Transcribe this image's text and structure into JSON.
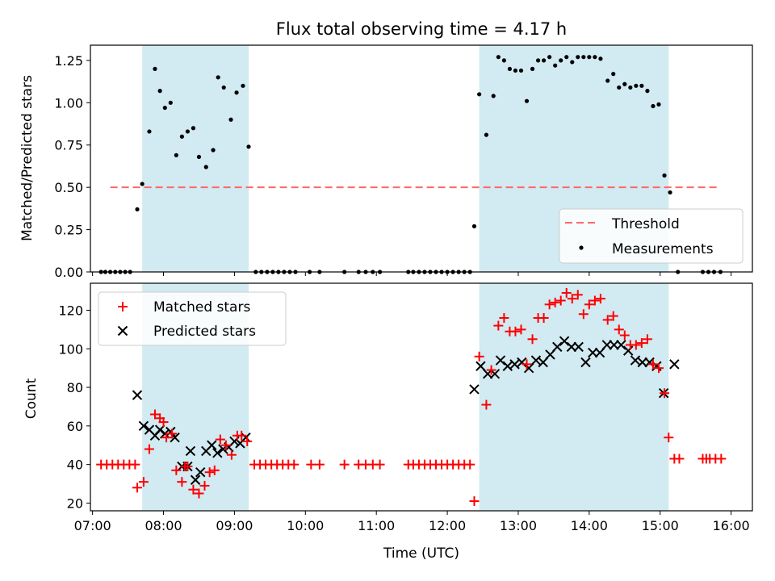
{
  "title": "Flux total observing time = 4.17 h",
  "colors": {
    "shade": "#add8e6",
    "threshold": "#ff6666",
    "measurement": "#000000",
    "matched": "#ff0000",
    "predicted": "#000000"
  },
  "chart_data": [
    {
      "type": "scatter",
      "ylabel": "Matched/Predicted stars",
      "xlim": [
        6.97,
        16.3
      ],
      "ylim": [
        0,
        1.34
      ],
      "yticks": [
        0.0,
        0.25,
        0.5,
        0.75,
        1.0,
        1.25
      ],
      "ytick_labels": [
        "0.00",
        "0.25",
        "0.50",
        "0.75",
        "1.00",
        "1.25"
      ],
      "shaded_spans": [
        [
          7.7,
          9.2
        ],
        [
          12.45,
          15.12
        ]
      ],
      "threshold": {
        "label": "Threshold",
        "y": 0.5,
        "x": [
          7.25,
          15.85
        ]
      },
      "legend_position": "lower right",
      "series": [
        {
          "name": "Measurements",
          "points": [
            [
              7.12,
              0
            ],
            [
              7.18,
              0
            ],
            [
              7.25,
              0
            ],
            [
              7.32,
              0
            ],
            [
              7.39,
              0
            ],
            [
              7.46,
              0
            ],
            [
              7.53,
              0
            ],
            [
              7.63,
              0.37
            ],
            [
              7.7,
              0.52
            ],
            [
              7.8,
              0.83
            ],
            [
              7.88,
              1.2
            ],
            [
              7.95,
              1.07
            ],
            [
              8.02,
              0.97
            ],
            [
              8.1,
              1.0
            ],
            [
              8.18,
              0.69
            ],
            [
              8.26,
              0.8
            ],
            [
              8.34,
              0.83
            ],
            [
              8.42,
              0.85
            ],
            [
              8.5,
              0.68
            ],
            [
              8.6,
              0.62
            ],
            [
              8.7,
              0.72
            ],
            [
              8.77,
              1.15
            ],
            [
              8.85,
              1.09
            ],
            [
              8.95,
              0.9
            ],
            [
              9.03,
              1.06
            ],
            [
              9.12,
              1.1
            ],
            [
              9.2,
              0.74
            ],
            [
              9.3,
              0
            ],
            [
              9.38,
              0
            ],
            [
              9.46,
              0
            ],
            [
              9.54,
              0
            ],
            [
              9.62,
              0
            ],
            [
              9.7,
              0
            ],
            [
              9.78,
              0
            ],
            [
              9.86,
              0
            ],
            [
              10.06,
              0
            ],
            [
              10.2,
              0
            ],
            [
              10.55,
              0
            ],
            [
              10.75,
              0
            ],
            [
              10.85,
              0
            ],
            [
              10.95,
              0
            ],
            [
              11.05,
              0
            ],
            [
              11.45,
              0
            ],
            [
              11.52,
              0
            ],
            [
              11.6,
              0
            ],
            [
              11.68,
              0
            ],
            [
              11.76,
              0
            ],
            [
              11.84,
              0
            ],
            [
              11.92,
              0
            ],
            [
              12.0,
              0
            ],
            [
              12.08,
              0
            ],
            [
              12.16,
              0
            ],
            [
              12.24,
              0
            ],
            [
              12.32,
              0
            ],
            [
              12.38,
              0.27
            ],
            [
              12.45,
              1.05
            ],
            [
              12.55,
              0.81
            ],
            [
              12.65,
              1.04
            ],
            [
              12.72,
              1.27
            ],
            [
              12.8,
              1.25
            ],
            [
              12.88,
              1.2
            ],
            [
              12.96,
              1.19
            ],
            [
              13.04,
              1.19
            ],
            [
              13.12,
              1.01
            ],
            [
              13.2,
              1.2
            ],
            [
              13.28,
              1.25
            ],
            [
              13.36,
              1.25
            ],
            [
              13.44,
              1.27
            ],
            [
              13.52,
              1.22
            ],
            [
              13.6,
              1.25
            ],
            [
              13.68,
              1.27
            ],
            [
              13.76,
              1.24
            ],
            [
              13.84,
              1.27
            ],
            [
              13.92,
              1.27
            ],
            [
              14.0,
              1.27
            ],
            [
              14.08,
              1.27
            ],
            [
              14.16,
              1.26
            ],
            [
              14.26,
              1.13
            ],
            [
              14.34,
              1.17
            ],
            [
              14.42,
              1.09
            ],
            [
              14.5,
              1.11
            ],
            [
              14.58,
              1.09
            ],
            [
              14.66,
              1.1
            ],
            [
              14.74,
              1.1
            ],
            [
              14.82,
              1.07
            ],
            [
              14.9,
              0.98
            ],
            [
              14.98,
              0.99
            ],
            [
              15.06,
              0.57
            ],
            [
              15.14,
              0.47
            ],
            [
              15.25,
              0
            ],
            [
              15.6,
              0
            ],
            [
              15.68,
              0
            ],
            [
              15.76,
              0
            ],
            [
              15.85,
              0
            ]
          ]
        }
      ]
    },
    {
      "type": "scatter",
      "xlabel": "Time (UTC)",
      "ylabel": "Count",
      "xlim": [
        6.97,
        16.3
      ],
      "ylim": [
        16,
        134
      ],
      "yticks": [
        20,
        40,
        60,
        80,
        100,
        120
      ],
      "xticks": [
        7,
        8,
        9,
        10,
        11,
        12,
        13,
        14,
        15,
        16
      ],
      "xtick_labels": [
        "07:00",
        "08:00",
        "09:00",
        "10:00",
        "11:00",
        "12:00",
        "13:00",
        "14:00",
        "15:00",
        "16:00"
      ],
      "shaded_spans": [
        [
          7.7,
          9.2
        ],
        [
          12.45,
          15.12
        ]
      ],
      "legend_position": "upper left",
      "series": [
        {
          "name": "Matched stars",
          "marker": "plus",
          "points": [
            [
              7.12,
              40
            ],
            [
              7.2,
              40
            ],
            [
              7.28,
              40
            ],
            [
              7.36,
              40
            ],
            [
              7.44,
              40
            ],
            [
              7.52,
              40
            ],
            [
              7.6,
              40
            ],
            [
              7.63,
              28
            ],
            [
              7.72,
              31
            ],
            [
              7.8,
              48
            ],
            [
              7.88,
              66
            ],
            [
              7.95,
              64
            ],
            [
              8.0,
              62
            ],
            [
              8.04,
              54
            ],
            [
              8.12,
              56
            ],
            [
              8.18,
              37
            ],
            [
              8.26,
              31
            ],
            [
              8.3,
              39
            ],
            [
              8.34,
              39
            ],
            [
              8.42,
              27
            ],
            [
              8.5,
              25
            ],
            [
              8.58,
              29
            ],
            [
              8.65,
              36
            ],
            [
              8.72,
              37
            ],
            [
              8.8,
              53
            ],
            [
              8.88,
              50
            ],
            [
              8.96,
              45
            ],
            [
              9.04,
              55
            ],
            [
              9.1,
              55
            ],
            [
              9.18,
              52
            ],
            [
              9.28,
              40
            ],
            [
              9.36,
              40
            ],
            [
              9.44,
              40
            ],
            [
              9.52,
              40
            ],
            [
              9.6,
              40
            ],
            [
              9.68,
              40
            ],
            [
              9.76,
              40
            ],
            [
              9.84,
              40
            ],
            [
              10.08,
              40
            ],
            [
              10.2,
              40
            ],
            [
              10.55,
              40
            ],
            [
              10.75,
              40
            ],
            [
              10.85,
              40
            ],
            [
              10.95,
              40
            ],
            [
              11.05,
              40
            ],
            [
              11.45,
              40
            ],
            [
              11.52,
              40
            ],
            [
              11.6,
              40
            ],
            [
              11.68,
              40
            ],
            [
              11.76,
              40
            ],
            [
              11.84,
              40
            ],
            [
              11.92,
              40
            ],
            [
              12.0,
              40
            ],
            [
              12.08,
              40
            ],
            [
              12.16,
              40
            ],
            [
              12.24,
              40
            ],
            [
              12.32,
              40
            ],
            [
              12.38,
              21
            ],
            [
              12.45,
              96
            ],
            [
              12.55,
              71
            ],
            [
              12.62,
              89
            ],
            [
              12.72,
              112
            ],
            [
              12.8,
              116
            ],
            [
              12.88,
              109
            ],
            [
              12.96,
              109
            ],
            [
              13.04,
              110
            ],
            [
              13.12,
              92
            ],
            [
              13.2,
              105
            ],
            [
              13.28,
              116
            ],
            [
              13.36,
              116
            ],
            [
              13.44,
              123
            ],
            [
              13.52,
              124
            ],
            [
              13.6,
              125
            ],
            [
              13.68,
              129
            ],
            [
              13.76,
              126
            ],
            [
              13.84,
              128
            ],
            [
              13.92,
              118
            ],
            [
              14.0,
              123
            ],
            [
              14.08,
              125
            ],
            [
              14.16,
              126
            ],
            [
              14.26,
              115
            ],
            [
              14.34,
              117
            ],
            [
              14.42,
              110
            ],
            [
              14.5,
              107
            ],
            [
              14.58,
              102
            ],
            [
              14.66,
              102
            ],
            [
              14.74,
              103
            ],
            [
              14.82,
              105
            ],
            [
              14.9,
              92
            ],
            [
              14.98,
              90
            ],
            [
              15.06,
              77
            ],
            [
              15.12,
              54
            ],
            [
              15.2,
              43
            ],
            [
              15.27,
              43
            ],
            [
              15.6,
              43
            ],
            [
              15.65,
              43
            ],
            [
              15.7,
              43
            ],
            [
              15.78,
              43
            ],
            [
              15.86,
              43
            ]
          ]
        },
        {
          "name": "Predicted stars",
          "marker": "x",
          "points": [
            [
              7.63,
              76
            ],
            [
              7.72,
              60
            ],
            [
              7.8,
              58
            ],
            [
              7.88,
              55
            ],
            [
              7.95,
              58
            ],
            [
              8.02,
              56
            ],
            [
              8.1,
              57
            ],
            [
              8.16,
              54
            ],
            [
              8.26,
              39
            ],
            [
              8.34,
              39
            ],
            [
              8.38,
              47
            ],
            [
              8.45,
              32
            ],
            [
              8.52,
              36
            ],
            [
              8.6,
              47
            ],
            [
              8.68,
              50
            ],
            [
              8.76,
              46
            ],
            [
              8.84,
              48
            ],
            [
              8.92,
              49
            ],
            [
              9.0,
              52
            ],
            [
              9.08,
              51
            ],
            [
              9.16,
              54
            ],
            [
              12.38,
              79
            ],
            [
              12.47,
              91
            ],
            [
              12.57,
              87
            ],
            [
              12.67,
              87
            ],
            [
              12.75,
              94
            ],
            [
              12.85,
              91
            ],
            [
              12.95,
              92
            ],
            [
              13.05,
              93
            ],
            [
              13.15,
              90
            ],
            [
              13.25,
              94
            ],
            [
              13.35,
              93
            ],
            [
              13.45,
              97
            ],
            [
              13.55,
              101
            ],
            [
              13.65,
              104
            ],
            [
              13.75,
              101
            ],
            [
              13.85,
              101
            ],
            [
              13.95,
              93
            ],
            [
              14.05,
              98
            ],
            [
              14.15,
              98
            ],
            [
              14.25,
              102
            ],
            [
              14.35,
              102
            ],
            [
              14.45,
              102
            ],
            [
              14.55,
              99
            ],
            [
              14.65,
              94
            ],
            [
              14.75,
              93
            ],
            [
              14.85,
              93
            ],
            [
              14.95,
              91
            ],
            [
              15.05,
              77
            ],
            [
              15.2,
              92
            ]
          ]
        }
      ]
    }
  ]
}
